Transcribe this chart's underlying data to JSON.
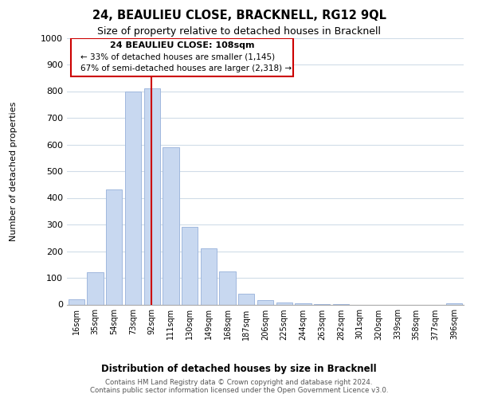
{
  "title": "24, BEAULIEU CLOSE, BRACKNELL, RG12 9QL",
  "subtitle": "Size of property relative to detached houses in Bracknell",
  "bar_labels": [
    "16sqm",
    "35sqm",
    "54sqm",
    "73sqm",
    "92sqm",
    "111sqm",
    "130sqm",
    "149sqm",
    "168sqm",
    "187sqm",
    "206sqm",
    "225sqm",
    "244sqm",
    "263sqm",
    "282sqm",
    "301sqm",
    "320sqm",
    "339sqm",
    "358sqm",
    "377sqm",
    "396sqm"
  ],
  "bar_values": [
    20,
    120,
    430,
    800,
    810,
    590,
    290,
    210,
    125,
    40,
    15,
    8,
    3,
    2,
    1,
    0,
    0,
    0,
    0,
    0,
    5
  ],
  "bar_color": "#c8d8f0",
  "bar_edge_color": "#a0b8de",
  "ylabel": "Number of detached properties",
  "xlabel": "Distribution of detached houses by size in Bracknell",
  "ylim": [
    0,
    1000
  ],
  "yticks": [
    0,
    100,
    200,
    300,
    400,
    500,
    600,
    700,
    800,
    900,
    1000
  ],
  "vline_x": 3.97,
  "vline_color": "#cc0000",
  "annotation_title": "24 BEAULIEU CLOSE: 108sqm",
  "annotation_line1": "← 33% of detached houses are smaller (1,145)",
  "annotation_line2": "67% of semi-detached houses are larger (2,318) →",
  "footer1": "Contains HM Land Registry data © Crown copyright and database right 2024.",
  "footer2": "Contains public sector information licensed under the Open Government Licence v3.0.",
  "bg_color": "#ffffff",
  "grid_color": "#d0dce8"
}
